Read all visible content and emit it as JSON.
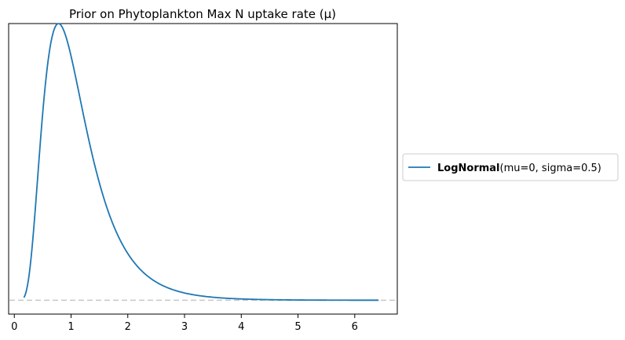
{
  "chart_data": {
    "type": "line",
    "title": "Prior on Phytoplankton Max N uptake rate (μ)",
    "xlabel": "",
    "ylabel": "",
    "xlim": [
      -0.1,
      6.75
    ],
    "ylim": [
      -0.05,
      1.0
    ],
    "x_ticks": [
      0,
      1,
      2,
      3,
      4,
      5,
      6
    ],
    "x_tick_labels": [
      "0",
      "1",
      "2",
      "3",
      "4",
      "5",
      "6"
    ],
    "y_ticks_shown": false,
    "grid": false,
    "legend_position": "outside right, vertically centered",
    "series": [
      {
        "name_bold": "LogNormal",
        "name_rest": "(mu=0, sigma=0.5)",
        "color": "#1f77b4",
        "distribution": "lognormal",
        "mu": 0,
        "sigma": 0.5,
        "x_range": [
          0.17,
          6.42
        ]
      }
    ],
    "baseline": {
      "y": 0,
      "style": "dashed",
      "color": "#c8c8c8"
    }
  }
}
